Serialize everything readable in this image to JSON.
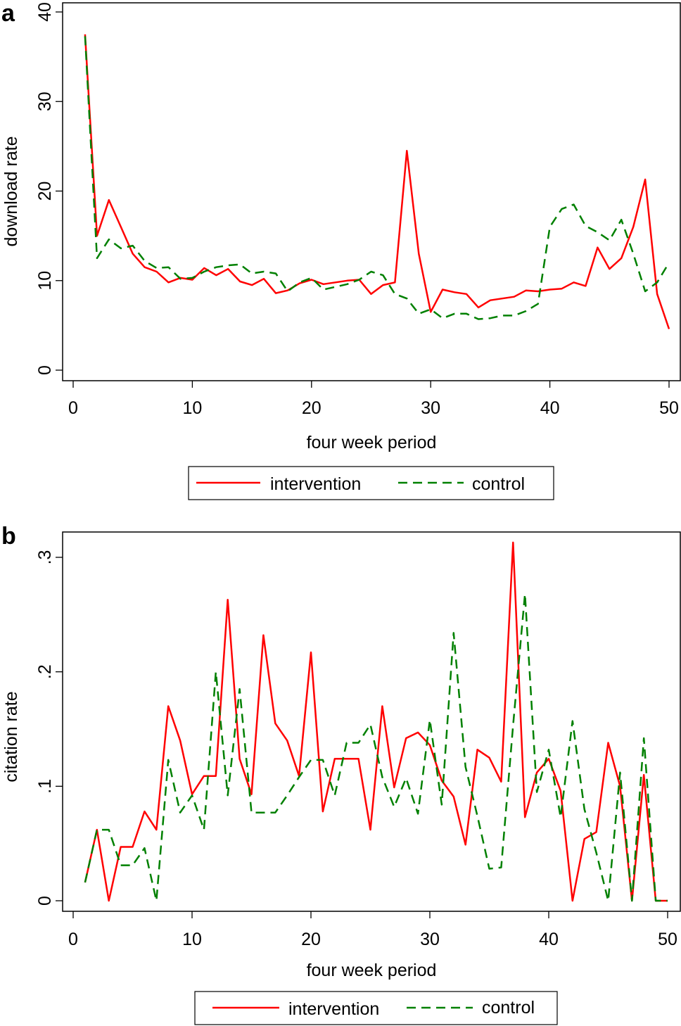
{
  "chart_data": [
    {
      "panel": "a",
      "type": "line",
      "title": "",
      "xlabel": "four week period",
      "ylabel": "download rate",
      "xlim": [
        0,
        50
      ],
      "ylim": [
        -1.2,
        41
      ],
      "xticks": [
        0,
        10,
        20,
        30,
        40,
        50
      ],
      "xtick_labels": [
        "0",
        "10",
        "20",
        "30",
        "40",
        "50"
      ],
      "yticks": [
        0,
        10,
        20,
        30,
        40
      ],
      "ytick_labels": [
        "0",
        "10",
        "20",
        "30",
        "40"
      ],
      "grid": false,
      "legend_position": "bottom",
      "x": [
        1,
        2,
        3,
        4,
        5,
        6,
        7,
        8,
        9,
        10,
        11,
        12,
        13,
        14,
        15,
        16,
        17,
        18,
        19,
        20,
        21,
        22,
        23,
        24,
        25,
        26,
        27,
        28,
        29,
        30,
        31,
        32,
        33,
        34,
        35,
        36,
        37,
        38,
        39,
        40,
        41,
        42,
        43,
        44,
        45,
        46,
        47,
        48,
        49,
        50
      ],
      "series": [
        {
          "name": "intervention",
          "color": "#ff0000",
          "style": "solid",
          "values": [
            37.5,
            15,
            19,
            16,
            13,
            11.5,
            11,
            9.8,
            10.3,
            10.1,
            11.4,
            10.6,
            11.3,
            9.9,
            9.5,
            10.2,
            8.6,
            8.9,
            9.7,
            10.1,
            9.6,
            9.8,
            10,
            10.1,
            8.5,
            9.5,
            9.8,
            24.5,
            13,
            6.5,
            9,
            8.7,
            8.5,
            7,
            7.8,
            8,
            8.2,
            8.9,
            8.8,
            9,
            9.1,
            9.8,
            9.4,
            13.7,
            11.3,
            12.5,
            16,
            21.3,
            8.5,
            4.6
          ]
        },
        {
          "name": "control",
          "color": "#008000",
          "style": "dashed",
          "values": [
            37.3,
            12.5,
            14.6,
            13.6,
            13.9,
            12.2,
            11.4,
            11.5,
            10.2,
            10.3,
            11,
            11.5,
            11.7,
            11.8,
            10.8,
            11,
            10.8,
            8.8,
            9.8,
            10.3,
            9,
            9.3,
            9.6,
            10.1,
            11,
            10.6,
            8.5,
            8,
            6.3,
            6.8,
            5.8,
            6.3,
            6.3,
            5.7,
            5.8,
            6.1,
            6.1,
            6.6,
            7.4,
            16,
            18,
            18.5,
            16.1,
            15.4,
            14.5,
            16.8,
            13,
            8.8,
            9.8,
            12
          ]
        }
      ]
    },
    {
      "panel": "b",
      "type": "line",
      "title": "",
      "xlabel": "four week period",
      "ylabel": "citation rate",
      "xlim": [
        0,
        50
      ],
      "ylim": [
        -0.009,
        0.322
      ],
      "xticks": [
        0,
        10,
        20,
        30,
        40,
        50
      ],
      "xtick_labels": [
        "0",
        "10",
        "20",
        "30",
        "40",
        "50"
      ],
      "yticks": [
        0,
        0.1,
        0.2,
        0.3
      ],
      "ytick_labels": [
        "0",
        ".1",
        ".2",
        ".3"
      ],
      "grid": false,
      "legend_position": "bottom",
      "x": [
        1,
        2,
        3,
        4,
        5,
        6,
        7,
        8,
        9,
        10,
        11,
        12,
        13,
        14,
        15,
        16,
        17,
        18,
        19,
        20,
        21,
        22,
        23,
        24,
        25,
        26,
        27,
        28,
        29,
        30,
        31,
        32,
        33,
        34,
        35,
        36,
        37,
        38,
        39,
        40,
        41,
        42,
        43,
        44,
        45,
        46,
        47,
        48,
        49,
        50
      ],
      "series": [
        {
          "name": "intervention",
          "color": "#ff0000",
          "style": "solid",
          "values": [
            0.016,
            0.062,
            0,
            0.047,
            0.047,
            0.078,
            0.062,
            0.17,
            0.14,
            0.093,
            0.109,
            0.109,
            0.263,
            0.124,
            0.093,
            0.232,
            0.155,
            0.14,
            0.109,
            0.217,
            0.078,
            0.124,
            0.124,
            0.124,
            0.062,
            0.17,
            0.099,
            0.142,
            0.147,
            0.136,
            0.105,
            0.091,
            0.049,
            0.132,
            0.125,
            0.104,
            0.313,
            0.073,
            0.112,
            0.124,
            0.096,
            0,
            0.054,
            0.06,
            0.138,
            0.1,
            0,
            0.11,
            0,
            0
          ]
        },
        {
          "name": "control",
          "color": "#008000",
          "style": "dashed",
          "values": [
            0.016,
            0.062,
            0.062,
            0.031,
            0.031,
            0.046,
            0,
            0.123,
            0.077,
            0.092,
            0.062,
            0.2,
            0.092,
            0.185,
            0.077,
            0.077,
            0.077,
            0.092,
            0.108,
            0.123,
            0.123,
            0.092,
            0.138,
            0.138,
            0.154,
            0.108,
            0.082,
            0.107,
            0.076,
            0.158,
            0.084,
            0.234,
            0.117,
            0.074,
            0.028,
            0.029,
            0.153,
            0.268,
            0.095,
            0.132,
            0.073,
            0.157,
            0.08,
            0.042,
            0,
            0.112,
            0,
            0.142,
            0,
            0
          ]
        }
      ]
    }
  ]
}
